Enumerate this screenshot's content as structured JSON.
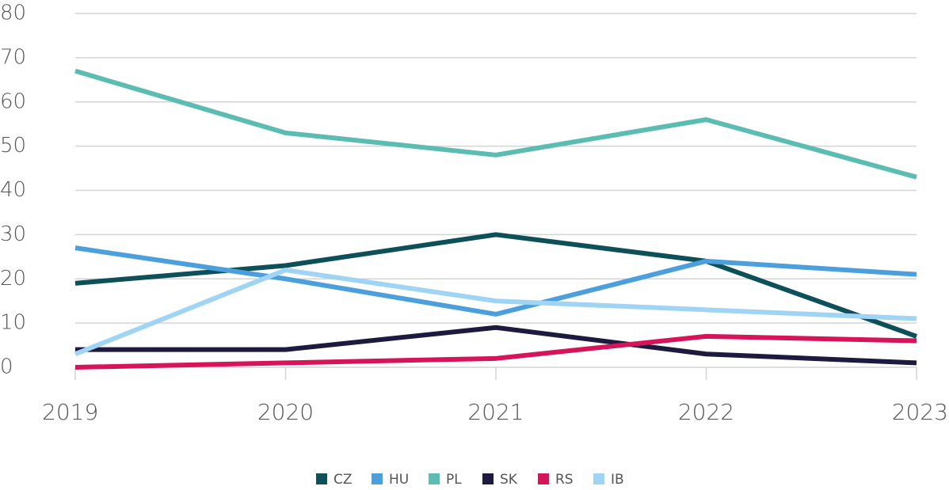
{
  "chart_data": {
    "type": "line",
    "categories": [
      "2019",
      "2020",
      "2021",
      "2022",
      "2023"
    ],
    "series": [
      {
        "name": "CZ",
        "color": "#0d5059",
        "values": [
          19,
          23,
          30,
          24,
          7
        ]
      },
      {
        "name": "HU",
        "color": "#4a9fdc",
        "values": [
          27,
          20,
          12,
          24,
          21
        ]
      },
      {
        "name": "PL",
        "color": "#5bbcb2",
        "values": [
          67,
          53,
          48,
          56,
          43
        ]
      },
      {
        "name": "SK",
        "color": "#1c1a3e",
        "values": [
          4,
          4,
          9,
          3,
          1
        ]
      },
      {
        "name": "RS",
        "color": "#d6145a",
        "values": [
          0,
          1,
          2,
          7,
          6
        ]
      },
      {
        "name": "IB",
        "color": "#9fd4f5",
        "values": [
          3,
          22,
          15,
          13,
          11
        ]
      }
    ],
    "ylim": [
      0,
      80
    ],
    "yticks": [
      0,
      10,
      20,
      30,
      40,
      50,
      60,
      70,
      80
    ],
    "grid": true,
    "legend": "bottom"
  }
}
